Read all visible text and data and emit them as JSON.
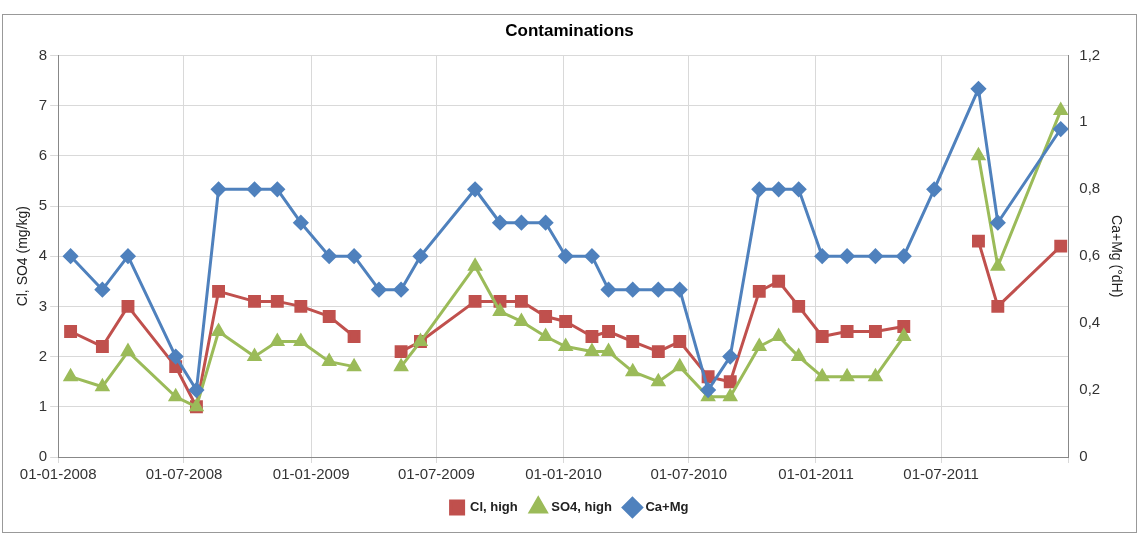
{
  "chart_data": {
    "type": "line",
    "title": "Contaminations",
    "ylabel": "Cl, SO4 (mg/kg)",
    "y2label": "Ca+Mg (°dH)",
    "x": [
      "2008-01-19",
      "2008-03-05",
      "2008-04-11",
      "2008-06-19",
      "2008-07-19",
      "2008-08-20",
      "2008-10-11",
      "2008-11-13",
      "2008-12-17",
      "2009-01-27",
      "2009-03-04",
      "2009-04-09",
      "2009-05-11",
      "2009-06-08",
      "2009-08-26",
      "2009-10-01",
      "2009-11-01",
      "2009-12-06",
      "2010-01-04",
      "2010-02-11",
      "2010-03-07",
      "2010-04-11",
      "2010-05-18",
      "2010-06-18",
      "2010-07-29",
      "2010-08-30",
      "2010-10-11",
      "2010-11-08",
      "2010-12-07",
      "2011-01-10",
      "2011-02-15",
      "2011-03-28",
      "2011-05-08",
      "2011-06-21",
      "2011-08-24",
      "2011-09-21",
      "2011-12-21"
    ],
    "series": [
      {
        "name": "Cl, high",
        "color": "#c0504d",
        "marker": "square",
        "values": [
          2.5,
          2.2,
          3.0,
          1.8,
          1.0,
          3.3,
          3.1,
          3.1,
          3.0,
          2.8,
          2.4,
          null,
          2.1,
          2.3,
          3.1,
          3.1,
          3.1,
          2.8,
          2.7,
          2.4,
          2.5,
          2.3,
          2.1,
          2.3,
          1.6,
          1.5,
          3.3,
          3.5,
          3.0,
          2.4,
          2.5,
          2.5,
          2.6,
          null,
          4.3,
          3.0,
          4.2
        ]
      },
      {
        "name": "SO4, high",
        "color": "#9bbb59",
        "marker": "triangle",
        "values": [
          1.6,
          1.4,
          2.1,
          1.2,
          1.0,
          2.5,
          2.0,
          2.3,
          2.3,
          1.9,
          1.8,
          null,
          1.8,
          2.3,
          3.8,
          2.9,
          2.7,
          2.4,
          2.2,
          2.1,
          2.1,
          1.7,
          1.5,
          1.8,
          1.2,
          1.2,
          2.2,
          2.4,
          2.0,
          1.6,
          1.6,
          1.6,
          2.4,
          null,
          6.0,
          3.8,
          6.9
        ]
      },
      {
        "name": "Ca+Mg",
        "color": "#4f81bd",
        "marker": "diamond",
        "axis": "y2",
        "values": [
          0.6,
          0.5,
          0.6,
          0.3,
          0.2,
          0.8,
          0.8,
          0.8,
          0.7,
          0.6,
          0.6,
          0.5,
          0.5,
          0.6,
          0.8,
          0.7,
          0.7,
          0.7,
          0.6,
          0.6,
          0.5,
          0.5,
          0.5,
          0.5,
          0.2,
          0.3,
          0.8,
          0.8,
          0.8,
          0.6,
          0.6,
          0.6,
          0.6,
          0.8,
          1.1,
          0.7,
          0.98
        ]
      }
    ],
    "xlim": [
      "2008-01-01",
      "2012-01-01"
    ],
    "xticks": [
      {
        "value": "2008-01-01",
        "label": "01-01-2008"
      },
      {
        "value": "2008-07-01",
        "label": "01-07-2008"
      },
      {
        "value": "2009-01-01",
        "label": "01-01-2009"
      },
      {
        "value": "2009-07-01",
        "label": "01-07-2009"
      },
      {
        "value": "2010-01-01",
        "label": "01-01-2010"
      },
      {
        "value": "2010-07-01",
        "label": "01-07-2010"
      },
      {
        "value": "2011-01-01",
        "label": "01-01-2011"
      },
      {
        "value": "2011-07-01",
        "label": "01-07-2011"
      },
      {
        "value": "2012-01-01",
        "label": null
      }
    ],
    "ylim": [
      0,
      8
    ],
    "yticks": [
      0,
      1,
      2,
      3,
      4,
      5,
      6,
      7,
      8
    ],
    "y2lim": [
      0,
      1.2
    ],
    "y2ticks": [
      0,
      {
        "value": 0.2,
        "label": "0,2"
      },
      {
        "value": 0.4,
        "label": "0,4"
      },
      {
        "value": 0.6,
        "label": "0,6"
      },
      {
        "value": 0.8,
        "label": "0,8"
      },
      1,
      {
        "value": 1.2,
        "label": "1,2"
      }
    ],
    "grid": true,
    "legend": "bottom",
    "line_style": "solid"
  }
}
